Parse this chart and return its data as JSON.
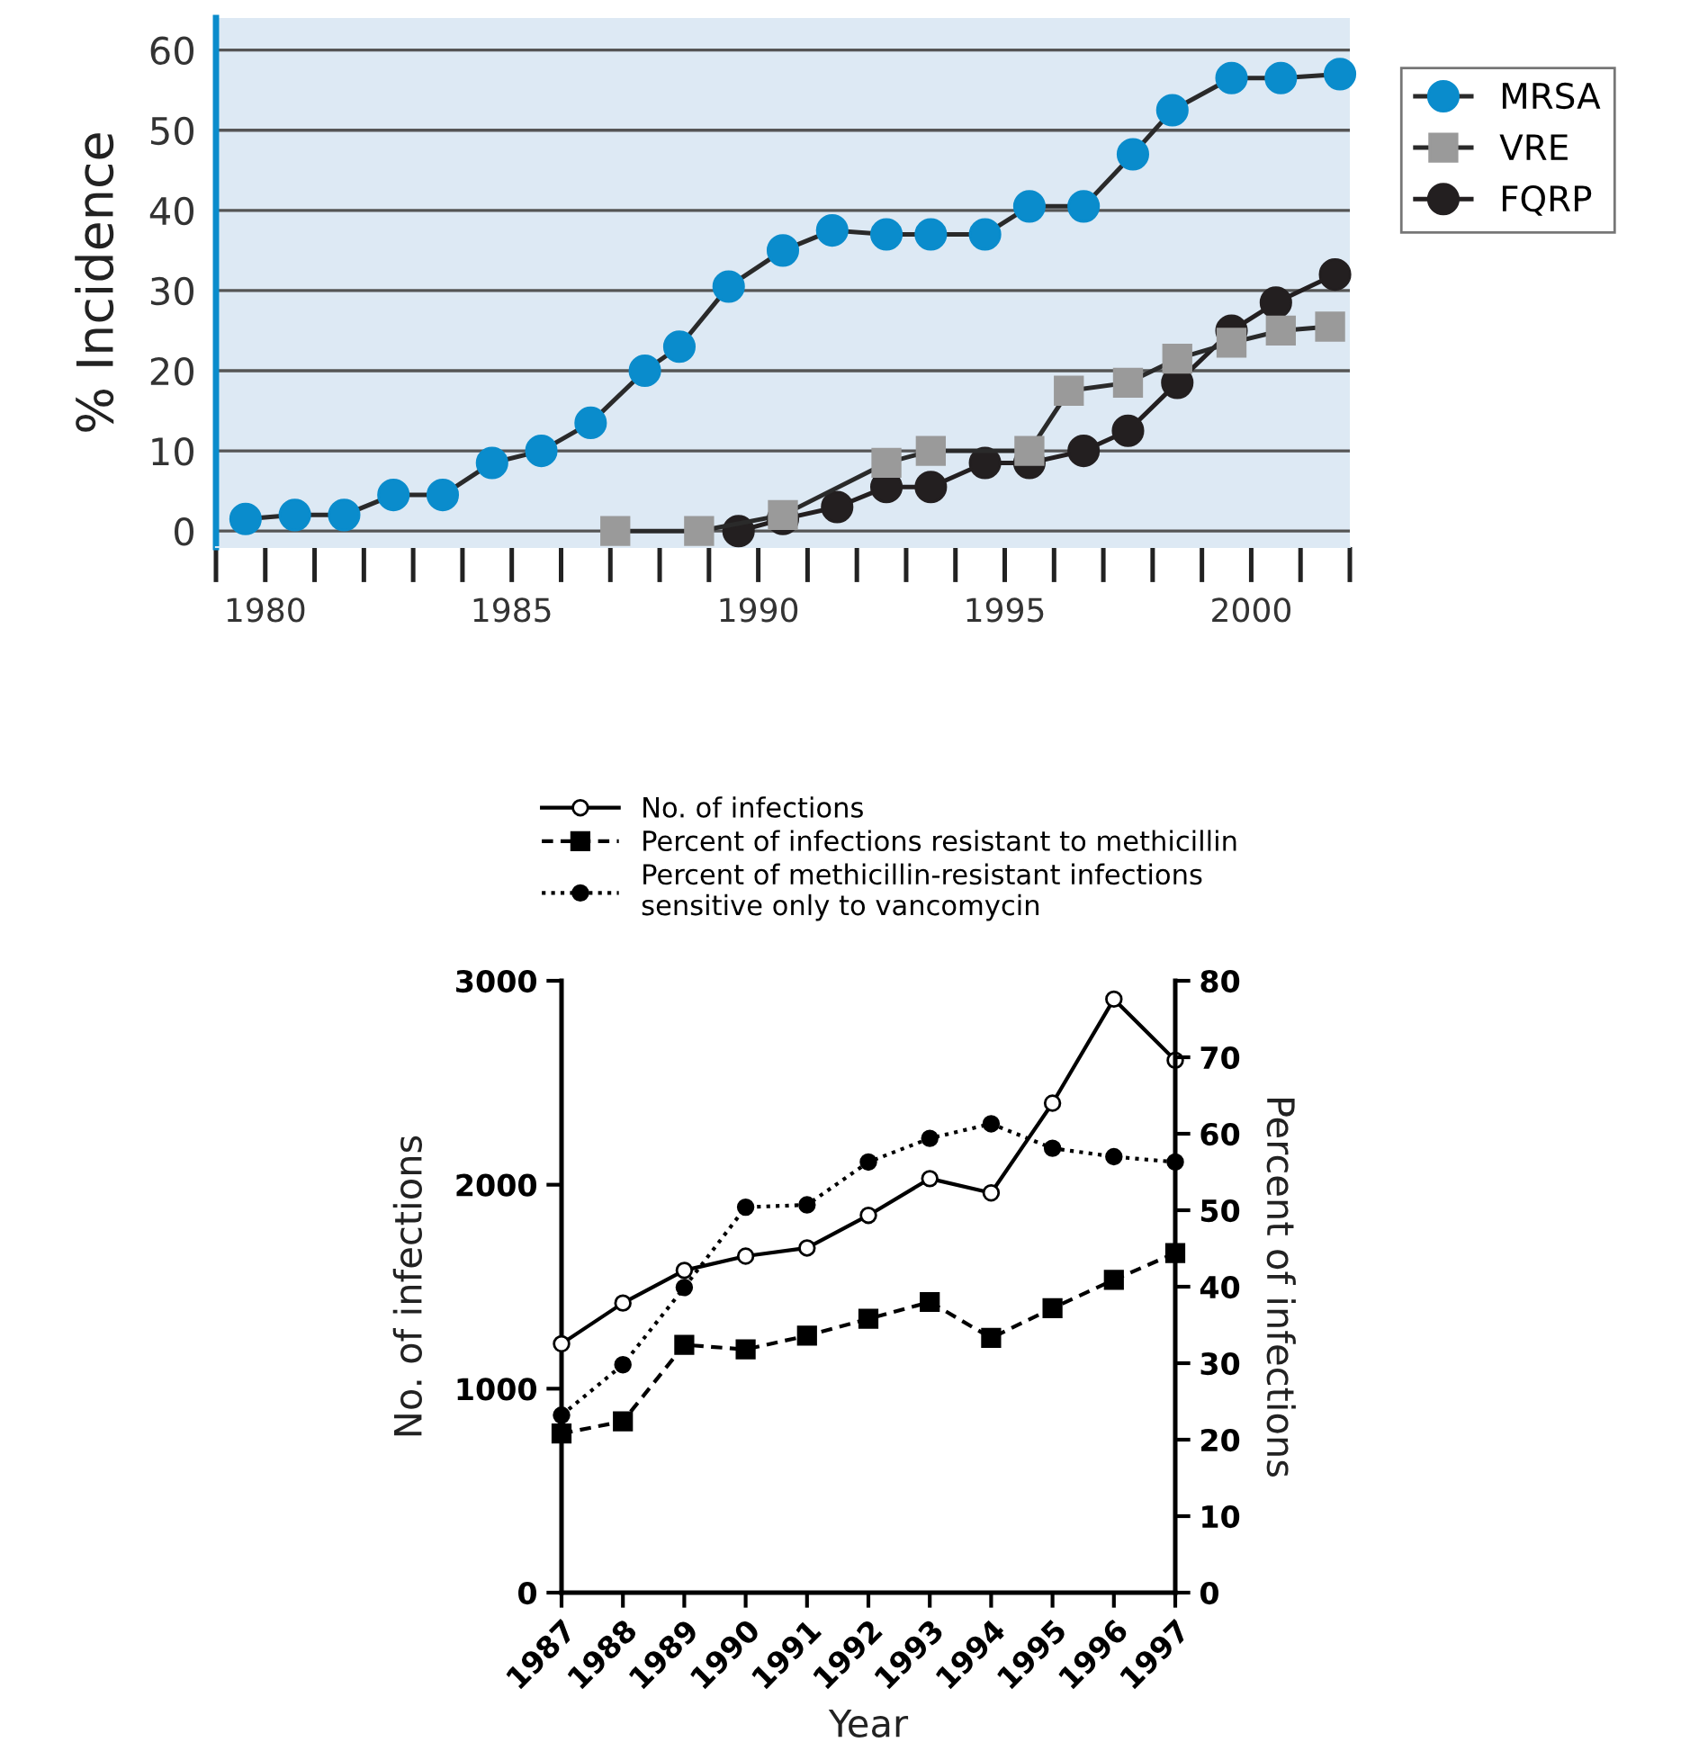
{
  "chart_data": [
    {
      "type": "line",
      "ylabel": "% Incidence",
      "xlim": [
        1979,
        2002
      ],
      "ylim": [
        -2,
        64
      ],
      "yticks": [
        0,
        10,
        20,
        30,
        40,
        50,
        60
      ],
      "xticks": [
        1980,
        1985,
        1990,
        1995,
        2000
      ],
      "grid": "y",
      "legend": "right",
      "line_style": "solid",
      "series": [
        {
          "name": "MRSA",
          "color": "#0a8ccc",
          "marker": "circle",
          "x": [
            1979.6,
            1980.6,
            1981.6,
            1982.6,
            1983.6,
            1984.6,
            1985.6,
            1986.6,
            1987.7,
            1988.4,
            1989.4,
            1990.5,
            1991.5,
            1992.6,
            1993.5,
            1994.6,
            1995.5,
            1996.6,
            1997.6,
            1998.4,
            1999.6,
            2000.6,
            2001.8
          ],
          "values": [
            1.5,
            2,
            2,
            4.5,
            4.5,
            8.5,
            10,
            13.5,
            20,
            23,
            30.5,
            35,
            37.5,
            37,
            37,
            37,
            40.5,
            40.5,
            47,
            52.5,
            56.5,
            56.5,
            57
          ]
        },
        {
          "name": "VRE",
          "color": "#9a9a9a",
          "marker": "square",
          "x": [
            1987.1,
            1988.8,
            1990.5,
            1992.6,
            1993.5,
            1995.5,
            1996.3,
            1997.5,
            1998.5,
            1999.6,
            2000.6,
            2001.6
          ],
          "values": [
            0,
            0,
            2,
            8.5,
            10,
            10,
            17.5,
            18.5,
            21.5,
            23.5,
            25,
            25.5
          ]
        },
        {
          "name": "FQRP",
          "color": "#231f20",
          "marker": "circle",
          "x": [
            1989.6,
            1990.5,
            1991.6,
            1992.6,
            1993.5,
            1994.6,
            1995.5,
            1996.6,
            1997.5,
            1998.5,
            1999.6,
            2000.5,
            2001.7
          ],
          "values": [
            0,
            1.5,
            3,
            5.5,
            5.5,
            8.5,
            8.5,
            10,
            12.5,
            18.5,
            25,
            28.5,
            32
          ]
        }
      ]
    },
    {
      "type": "line",
      "xlabel": "Year",
      "ylabel": "No. of infections",
      "y2label": "Percent of infections",
      "categories": [
        "1987",
        "1988",
        "1989",
        "1990",
        "1991",
        "1992",
        "1993",
        "1994",
        "1995",
        "1996",
        "1997"
      ],
      "ylim": [
        0,
        3000
      ],
      "yticks": [
        0,
        1000,
        2000,
        3000
      ],
      "y2lim": [
        0,
        80
      ],
      "y2ticks": [
        0,
        10,
        20,
        30,
        40,
        50,
        60,
        70,
        80
      ],
      "grid": false,
      "legend": "top",
      "series": [
        {
          "name": "No. of infections",
          "color": "#000000",
          "marker": "circle",
          "line_style": "solid",
          "values": [
            1220,
            1420,
            1580,
            1650,
            1690,
            1850,
            2030,
            1960,
            2400,
            2910,
            2610
          ]
        },
        {
          "name": "Percent of infections resistant to methicillin",
          "color": "#000000",
          "marker": "square",
          "line_style": "dashed",
          "axis": "y2",
          "values": [
            20.8,
            22.4,
            32.4,
            31.8,
            33.6,
            35.8,
            38,
            33.3,
            37.2,
            40.9,
            44.4
          ]
        },
        {
          "name": "Percent of methicillin-resistant infections\nsensitive only to vancomycin",
          "color": "#000000",
          "marker": "circle",
          "line_style": "dotted",
          "axis": "y2",
          "values": [
            23.2,
            29.8,
            39.9,
            50.4,
            50.7,
            56.3,
            59.4,
            61.3,
            58.1,
            57,
            56.3
          ]
        }
      ]
    }
  ]
}
